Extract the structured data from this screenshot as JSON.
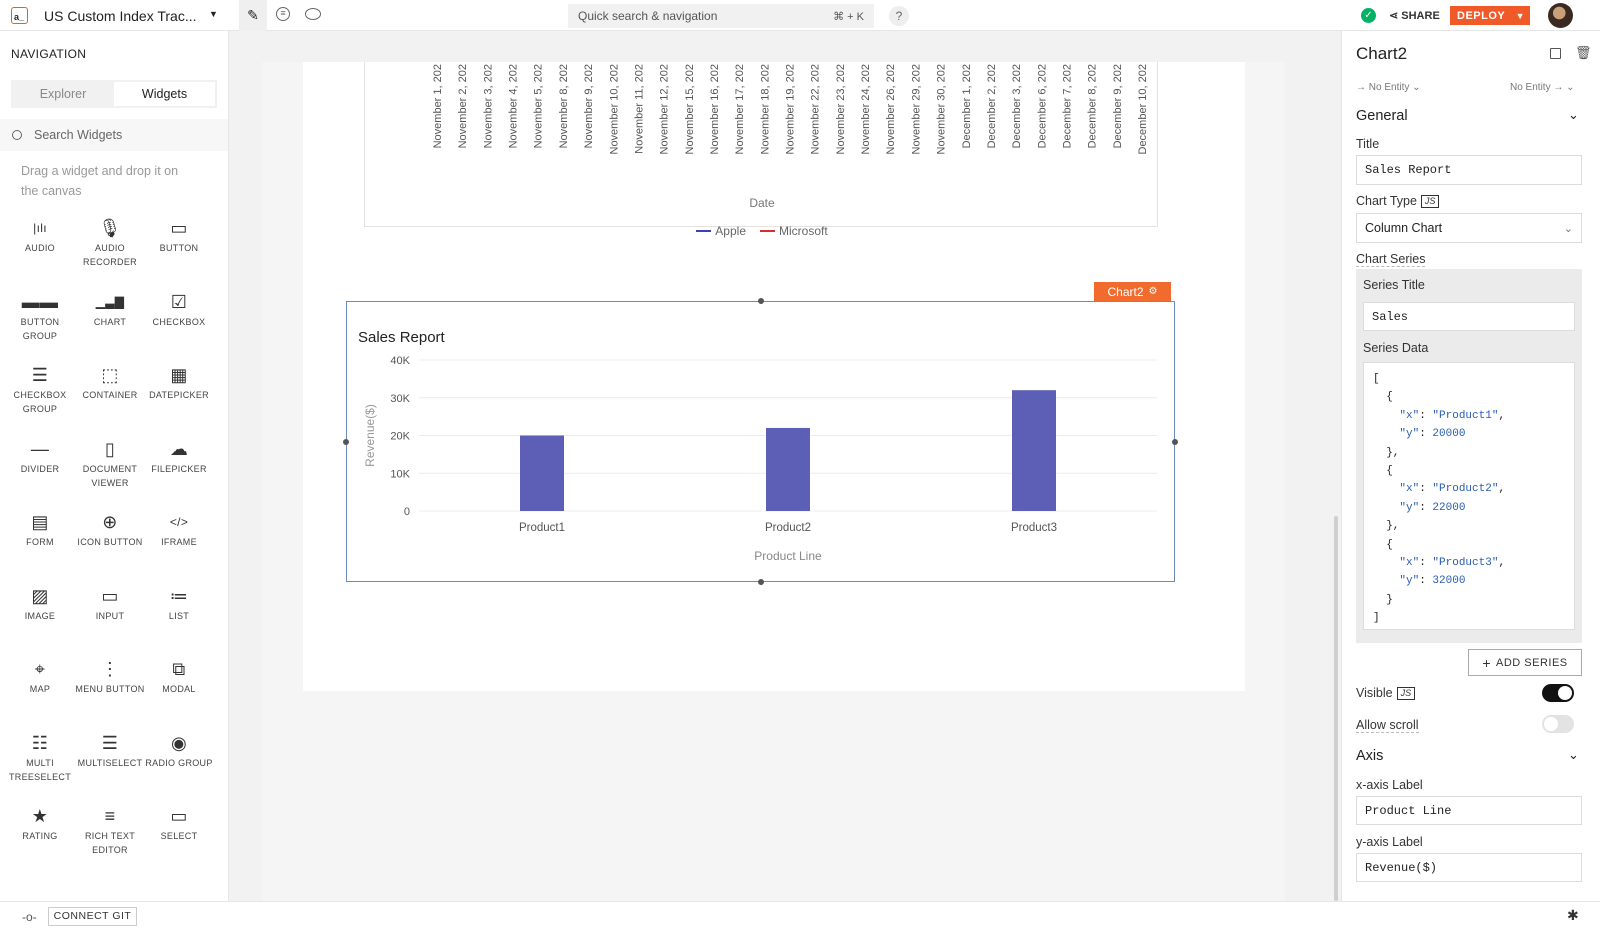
{
  "app": {
    "title": "US Custom Index Trac...",
    "search_placeholder": "Quick search & navigation",
    "search_shortcut": "⌘ + K",
    "help": "?",
    "share_label": "SHARE",
    "deploy_label": "DEPLOY"
  },
  "left": {
    "heading": "NAVIGATION",
    "tabs": [
      "Explorer",
      "Widgets"
    ],
    "search_placeholder": "Search Widgets",
    "hint": "Drag a widget and drop it on the canvas",
    "widgets": [
      {
        "label": "AUDIO",
        "icon": "audio-icon"
      },
      {
        "label": "AUDIO RECORDER",
        "icon": "microphone-icon"
      },
      {
        "label": "BUTTON",
        "icon": "button-icon"
      },
      {
        "label": "BUTTON GROUP",
        "icon": "button-group-icon"
      },
      {
        "label": "CHART",
        "icon": "chart-icon"
      },
      {
        "label": "CHECKBOX",
        "icon": "checkbox-icon"
      },
      {
        "label": "CHECKBOX GROUP",
        "icon": "checkbox-group-icon"
      },
      {
        "label": "CONTAINER",
        "icon": "container-icon"
      },
      {
        "label": "DATEPICKER",
        "icon": "calendar-icon"
      },
      {
        "label": "DIVIDER",
        "icon": "divider-icon"
      },
      {
        "label": "DOCUMENT VIEWER",
        "icon": "document-icon"
      },
      {
        "label": "FILEPICKER",
        "icon": "upload-cloud-icon"
      },
      {
        "label": "FORM",
        "icon": "form-icon"
      },
      {
        "label": "ICON BUTTON",
        "icon": "plus-circle-icon"
      },
      {
        "label": "IFRAME",
        "icon": "code-icon"
      },
      {
        "label": "IMAGE",
        "icon": "image-icon"
      },
      {
        "label": "INPUT",
        "icon": "input-icon"
      },
      {
        "label": "LIST",
        "icon": "list-icon"
      },
      {
        "label": "MAP",
        "icon": "map-pin-icon"
      },
      {
        "label": "MENU BUTTON",
        "icon": "more-vertical-icon"
      },
      {
        "label": "MODAL",
        "icon": "modal-icon"
      },
      {
        "label": "MULTI TREESELECT",
        "icon": "tree-icon"
      },
      {
        "label": "MULTISELECT",
        "icon": "multiselect-icon"
      },
      {
        "label": "RADIO GROUP",
        "icon": "radio-icon"
      },
      {
        "label": "RATING",
        "icon": "star-icon"
      },
      {
        "label": "RICH TEXT EDITOR",
        "icon": "text-editor-icon"
      },
      {
        "label": "SELECT",
        "icon": "select-icon"
      }
    ]
  },
  "chart1": {
    "x_ticks": [
      "November 1, 202",
      "November 2, 202",
      "November 3, 202",
      "November 4, 202",
      "November 5, 202",
      "November 8, 202",
      "November 9, 202",
      "November 10, 202",
      "November 11, 202",
      "November 12, 202",
      "November 15, 202",
      "November 16, 202",
      "November 17, 202",
      "November 18, 202",
      "November 19, 202",
      "November 22, 202",
      "November 23, 202",
      "November 24, 202",
      "November 26, 202",
      "November 29, 202",
      "November 30, 202",
      "December 1, 202",
      "December 2, 202",
      "December 3, 202",
      "December 6, 202",
      "December 7, 202",
      "December 8, 202",
      "December 9, 202",
      "December 10, 202"
    ],
    "xlabel": "Date",
    "legend": [
      {
        "name": "Apple",
        "color": "#3f3fae"
      },
      {
        "name": "Microsoft",
        "color": "#d32f2f"
      }
    ]
  },
  "chart_data": {
    "type": "bar",
    "title": "Sales Report",
    "xlabel": "Product Line",
    "ylabel": "Revenue($)",
    "categories": [
      "Product1",
      "Product2",
      "Product3"
    ],
    "values": [
      20000,
      22000,
      32000
    ],
    "ylim": [
      0,
      40000
    ],
    "yticks": [
      "0",
      "10K",
      "20K",
      "30K",
      "40K"
    ],
    "bar_color": "#5c5fb5",
    "grid": true
  },
  "widget_tag": "Chart2",
  "right": {
    "widget_name": "Chart2",
    "entity_left": "No Entity",
    "entity_right": "No Entity",
    "general_heading": "General",
    "title_label": "Title",
    "title_value": "Sales Report",
    "chart_type_label": "Chart Type",
    "js": "JS",
    "chart_type_value": "Column Chart",
    "chart_series_label": "Chart Series",
    "series_title_label": "Series Title",
    "series_title_value": "Sales",
    "series_data_label": "Series Data",
    "add_series": "ADD SERIES",
    "visible_label": "Visible",
    "allow_scroll_label": "Allow scroll",
    "axis_heading": "Axis",
    "x_axis_label": "x-axis Label",
    "x_axis_value": "Product Line",
    "y_axis_label": "y-axis Label",
    "y_axis_value": "Revenue($)"
  },
  "bottom": {
    "connect_git": "CONNECT GIT"
  },
  "colors": {
    "accent": "#f05a28",
    "success": "#03b365",
    "tag": "#f26b2e"
  }
}
